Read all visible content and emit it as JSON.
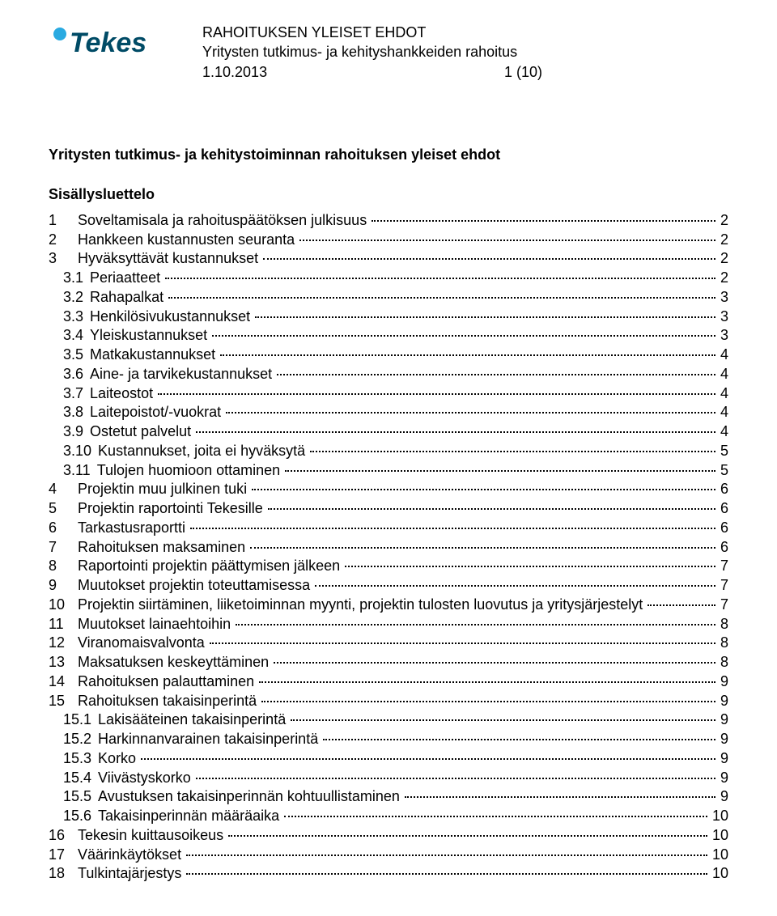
{
  "logo": {
    "text": "Tekes",
    "circle_color": "#2aaae1",
    "text_color": "#004b66"
  },
  "header": {
    "line1": "RAHOITUKSEN YLEISET EHDOT",
    "line2": "Yritysten tutkimus- ja kehityshankkeiden rahoitus",
    "date": "1.10.2013",
    "page_of": "1 (10)"
  },
  "title": "Yritysten tutkimus- ja kehitystoiminnan rahoituksen yleiset ehdot",
  "subtitle": "Sisällysluettelo",
  "toc": [
    {
      "num": "1",
      "label": "Soveltamisala ja rahoituspäätöksen julkisuus",
      "page": "2",
      "indent": 0
    },
    {
      "num": "2",
      "label": "Hankkeen kustannusten seuranta",
      "page": "2",
      "indent": 0
    },
    {
      "num": "3",
      "label": "Hyväksyttävät kustannukset",
      "page": "2",
      "indent": 0
    },
    {
      "num": "3.1",
      "label": "Periaatteet",
      "page": "2",
      "indent": 1
    },
    {
      "num": "3.2",
      "label": "Rahapalkat",
      "page": "3",
      "indent": 1
    },
    {
      "num": "3.3",
      "label": "Henkilösivukustannukset",
      "page": "3",
      "indent": 1
    },
    {
      "num": "3.4",
      "label": "Yleiskustannukset",
      "page": "3",
      "indent": 1
    },
    {
      "num": "3.5",
      "label": "Matkakustannukset",
      "page": "4",
      "indent": 1
    },
    {
      "num": "3.6",
      "label": "Aine- ja tarvikekustannukset",
      "page": "4",
      "indent": 1
    },
    {
      "num": "3.7",
      "label": "Laiteostot",
      "page": "4",
      "indent": 1
    },
    {
      "num": "3.8",
      "label": "Laitepoistot/-vuokrat",
      "page": "4",
      "indent": 1
    },
    {
      "num": "3.9",
      "label": "Ostetut palvelut",
      "page": "4",
      "indent": 1
    },
    {
      "num": "3.10",
      "label": "Kustannukset, joita ei hyväksytä",
      "page": "5",
      "indent": 1
    },
    {
      "num": "3.11",
      "label": "Tulojen huomioon ottaminen",
      "page": "5",
      "indent": 1
    },
    {
      "num": "4",
      "label": "Projektin muu julkinen tuki",
      "page": "6",
      "indent": 0
    },
    {
      "num": "5",
      "label": "Projektin raportointi Tekesille",
      "page": "6",
      "indent": 0
    },
    {
      "num": "6",
      "label": "Tarkastusraportti",
      "page": "6",
      "indent": 0
    },
    {
      "num": "7",
      "label": "Rahoituksen maksaminen",
      "page": "6",
      "indent": 0
    },
    {
      "num": "8",
      "label": "Raportointi projektin päättymisen jälkeen",
      "page": "7",
      "indent": 0
    },
    {
      "num": "9",
      "label": "Muutokset projektin toteuttamisessa",
      "page": "7",
      "indent": 0
    },
    {
      "num": "10",
      "label": "Projektin siirtäminen, liiketoiminnan myynti, projektin tulosten luovutus ja yritysjärjestelyt",
      "page": "7",
      "indent": 0
    },
    {
      "num": "11",
      "label": "Muutokset lainaehtoihin",
      "page": "8",
      "indent": 0
    },
    {
      "num": "12",
      "label": "Viranomaisvalvonta",
      "page": "8",
      "indent": 0
    },
    {
      "num": "13",
      "label": "Maksatuksen keskeyttäminen",
      "page": "8",
      "indent": 0
    },
    {
      "num": "14",
      "label": "Rahoituksen palauttaminen",
      "page": "9",
      "indent": 0
    },
    {
      "num": "15",
      "label": "Rahoituksen takaisinperintä",
      "page": "9",
      "indent": 0
    },
    {
      "num": "15.1",
      "label": "Lakisääteinen takaisinperintä",
      "page": "9",
      "indent": 1
    },
    {
      "num": "15.2",
      "label": "Harkinnanvarainen takaisinperintä",
      "page": "9",
      "indent": 1
    },
    {
      "num": "15.3",
      "label": "Korko",
      "page": "9",
      "indent": 1
    },
    {
      "num": "15.4",
      "label": "Viivästyskorko",
      "page": "9",
      "indent": 1
    },
    {
      "num": "15.5",
      "label": "Avustuksen takaisinperinnän kohtuullistaminen",
      "page": "9",
      "indent": 1
    },
    {
      "num": "15.6",
      "label": "Takaisinperinnän määräaika",
      "page": "10",
      "indent": 1
    },
    {
      "num": "16",
      "label": "Tekesin kuittausoikeus",
      "page": "10",
      "indent": 0
    },
    {
      "num": "17",
      "label": "Väärinkäytökset",
      "page": "10",
      "indent": 0
    },
    {
      "num": "18",
      "label": "Tulkintajärjestys",
      "page": "10",
      "indent": 0
    }
  ]
}
